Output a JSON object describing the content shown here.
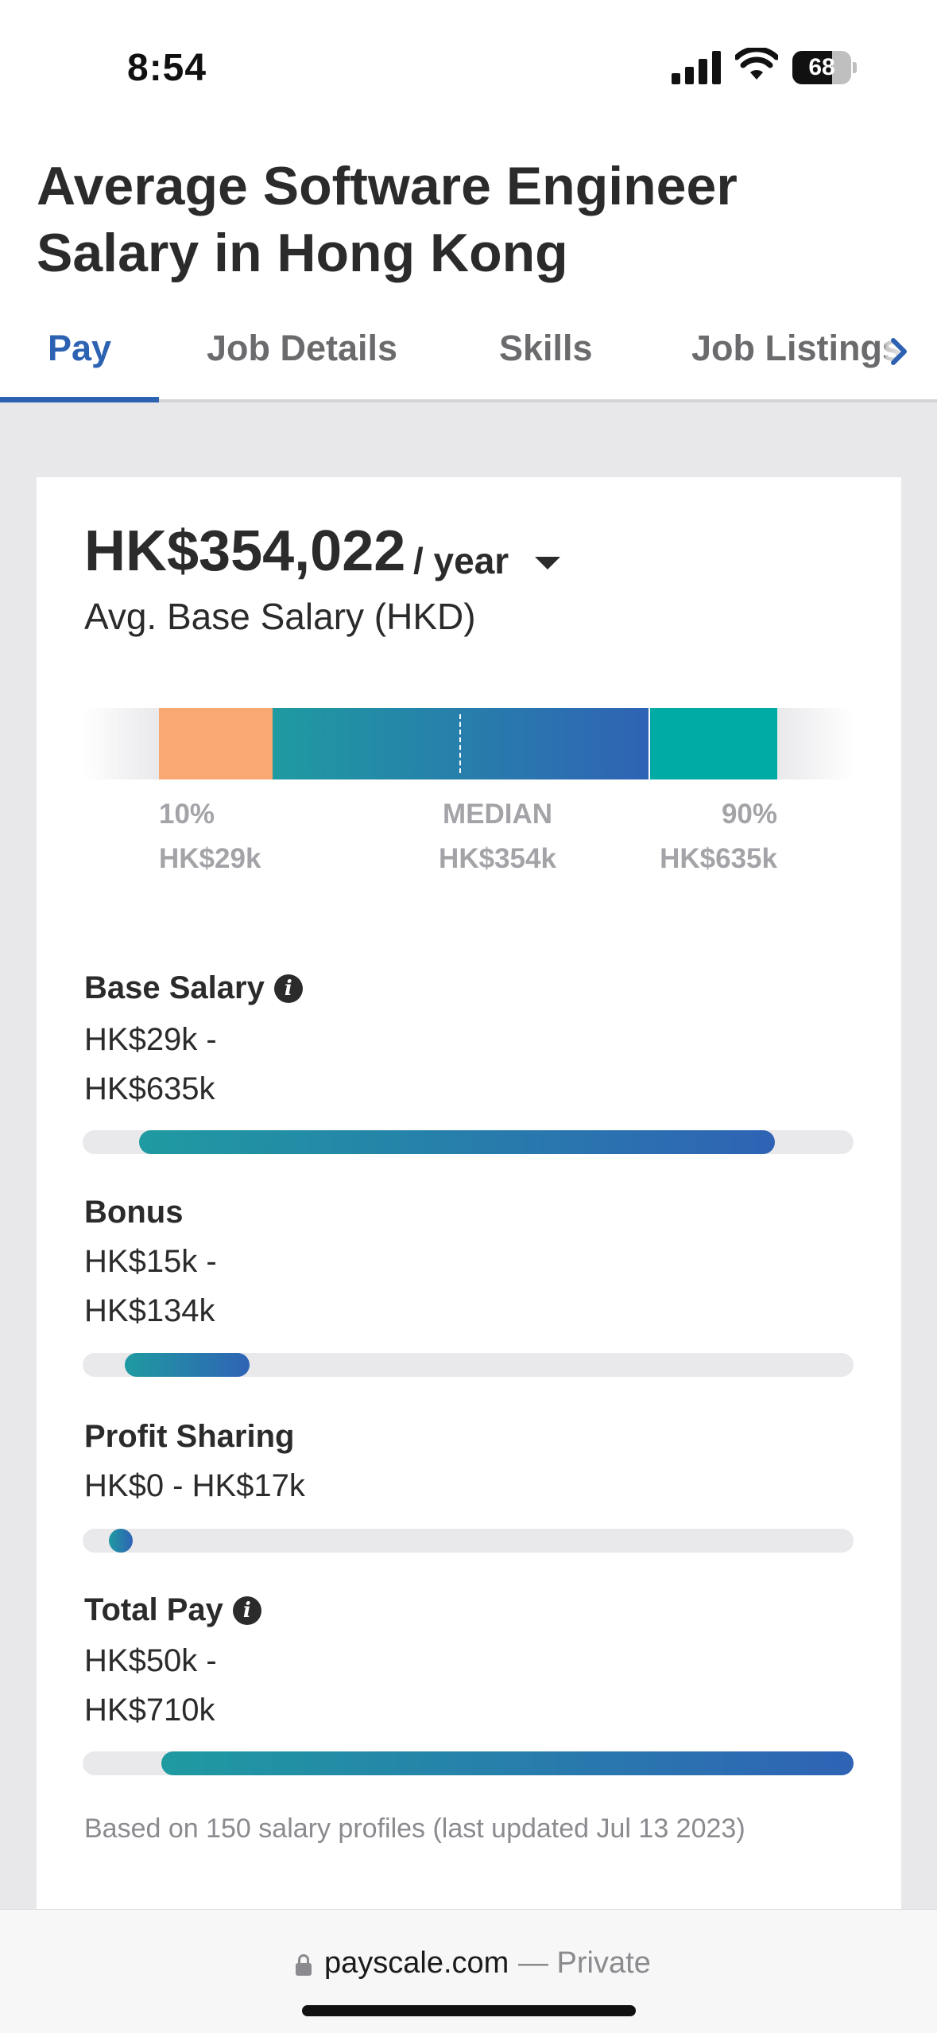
{
  "status_bar": {
    "time": "8:54",
    "battery": "68",
    "battery_level_percent": 68
  },
  "page": {
    "title": "Average Software Engineer Salary in Hong Kong"
  },
  "tabs": [
    {
      "label": "Pay",
      "active": true
    },
    {
      "label": "Job Details",
      "active": false
    },
    {
      "label": "Skills",
      "active": false
    },
    {
      "label": "Job Listings",
      "active": false
    }
  ],
  "summary": {
    "amount": "HK$354,022",
    "period": "/ year",
    "label": "Avg. Base Salary (HKD)"
  },
  "distribution": {
    "p10_label": "10%",
    "p10_value": "HK$29k",
    "median_label": "MEDIAN",
    "median_value": "HK$354k",
    "p90_label": "90%",
    "p90_value": "HK$635k"
  },
  "breakdown": [
    {
      "title": "Base Salary",
      "range_line1": "HK$29k -",
      "range_line2": "HK$635k",
      "range_min_k": 29,
      "range_max_k": 635
    },
    {
      "title": "Bonus",
      "range_line1": "HK$15k -",
      "range_line2": "HK$134k",
      "range_min_k": 15,
      "range_max_k": 134
    },
    {
      "title": "Profit Sharing",
      "range_line1": "HK$0 - HK$17k",
      "range_line2": "",
      "range_min_k": 0,
      "range_max_k": 17
    },
    {
      "title": "Total Pay",
      "range_line1": "HK$50k -",
      "range_line2": "HK$710k",
      "range_min_k": 50,
      "range_max_k": 710
    }
  ],
  "footnote": "Based on 150 salary profiles (last updated Jul 13 2023)",
  "browser": {
    "domain": "payscale.com",
    "privacy": "— Private"
  },
  "colors": {
    "accent_blue": "#2d62b3",
    "teal": "#1f9aa1",
    "orange": "#f8a870",
    "aqua": "#00aaa5"
  }
}
